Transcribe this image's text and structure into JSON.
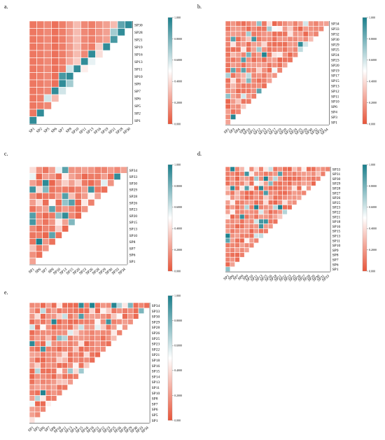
{
  "colors": {
    "low": "#e8553a",
    "mid": "#ffffff",
    "high": "#1a7f8c",
    "grid": "#ffffff",
    "axis": "#333333"
  },
  "colorbar_ticks": [
    "1.000",
    "0.8000",
    "0.6000",
    "0.4000",
    "0.2000",
    "0.000"
  ],
  "chart_data": [
    {
      "type": "heatmap",
      "panel_label": "a.",
      "title": "",
      "xlabel": "",
      "ylabel": "",
      "x_labels": [
        "SP1",
        "SP2",
        "SP5",
        "SP6",
        "SP7",
        "SP8",
        "SP10",
        "SP11",
        "SP13",
        "SP16",
        "SP19",
        "SP21",
        "SP28",
        "SP30"
      ],
      "y_labels": [
        "SP30",
        "SP28",
        "SP21",
        "SP19",
        "SP16",
        "SP13",
        "SP11",
        "SP10",
        "SP8",
        "SP7",
        "SP6",
        "SP5",
        "SP2",
        "SP1"
      ],
      "color_range": [
        0,
        1
      ],
      "note": "lower-triangular correlation matrix; values listed per y-label row (top to bottom), columns left to right",
      "values": [
        [
          0.1,
          0.12,
          0.15,
          0.08,
          0.12,
          0.2,
          0.3,
          0.15,
          0.12,
          0.18,
          0.22,
          0.3,
          0.85,
          0.95
        ],
        [
          0.1,
          0.12,
          0.15,
          0.08,
          0.12,
          0.2,
          0.3,
          0.15,
          0.12,
          0.18,
          0.22,
          0.7,
          0.95
        ],
        [
          0.1,
          0.12,
          0.15,
          0.08,
          0.12,
          0.2,
          0.3,
          0.15,
          0.12,
          0.18,
          0.22,
          0.9
        ],
        [
          0.1,
          0.12,
          0.15,
          0.08,
          0.12,
          0.2,
          0.3,
          0.15,
          0.12,
          0.35,
          0.95
        ],
        [
          0.1,
          0.12,
          0.15,
          0.08,
          0.12,
          0.2,
          0.3,
          0.15,
          0.95,
          0.4
        ],
        [
          0.1,
          0.12,
          0.15,
          0.08,
          0.12,
          0.25,
          0.35,
          0.95,
          0.55
        ],
        [
          0.1,
          0.12,
          0.15,
          0.08,
          0.12,
          0.6,
          0.95,
          0.45
        ],
        [
          0.1,
          0.12,
          0.15,
          0.08,
          0.9,
          0.95,
          0.5
        ],
        [
          0.1,
          0.12,
          0.15,
          0.08,
          0.95,
          0.7
        ],
        [
          0.1,
          0.12,
          0.15,
          0.95,
          0.6
        ],
        [
          0.1,
          0.12,
          0.6,
          0.3
        ],
        [
          0.1,
          0.12,
          0.15
        ],
        [
          0.1,
          0.95
        ],
        [
          0.95
        ]
      ]
    },
    {
      "type": "heatmap",
      "panel_label": "b.",
      "title": "",
      "xlabel": "",
      "ylabel": "",
      "x_labels": [
        "SP1",
        "SP3",
        "SP4",
        "SP6",
        "SP10",
        "SP11",
        "SP12",
        "SP13",
        "SP15",
        "SP17",
        "SP19",
        "SP20",
        "SP23",
        "SP24",
        "SP25",
        "SP29",
        "SP30",
        "SP32",
        "SP33",
        "SP34"
      ],
      "y_labels": [
        "SP34",
        "SP33",
        "SP32",
        "SP30",
        "SP29",
        "SP25",
        "SP24",
        "SP23",
        "SP20",
        "SP19",
        "SP17",
        "SP15",
        "SP13",
        "SP12",
        "SP11",
        "SP10",
        "SP6",
        "SP4",
        "SP3",
        "SP1"
      ],
      "color_range": [
        0,
        1
      ],
      "note": "lower-triangular correlation matrix; mostly low values with a few high cells"
    },
    {
      "type": "heatmap",
      "panel_label": "c.",
      "title": "",
      "xlabel": "",
      "ylabel": "",
      "x_labels": [
        "SP1",
        "SP6",
        "SP7",
        "SP8",
        "SP10",
        "SP13",
        "SP15",
        "SP20",
        "SP23",
        "SP26",
        "SP28",
        "SP29",
        "SP30",
        "SP33",
        "SP34"
      ],
      "y_labels": [
        "SP34",
        "SP33",
        "SP30",
        "SP29",
        "SP28",
        "SP26",
        "SP23",
        "SP20",
        "SP15",
        "SP13",
        "SP10",
        "SP8",
        "SP7",
        "SP6",
        "SP1"
      ],
      "color_range": [
        0,
        1
      ],
      "note": "lower-triangular correlation matrix"
    },
    {
      "type": "heatmap",
      "panel_label": "d.",
      "title": "",
      "xlabel": "",
      "ylabel": "",
      "x_labels": [
        "SP1",
        "SP6",
        "SP7",
        "SP8",
        "SP9",
        "SP10",
        "SP11",
        "SP13",
        "SP15",
        "SP16",
        "SP18",
        "SP21",
        "SP22",
        "SP23",
        "SP25",
        "SP26",
        "SP27",
        "SP28",
        "SP29",
        "SP30",
        "SP31",
        "SP33"
      ],
      "y_labels": [
        "SP33",
        "SP31",
        "SP30",
        "SP29",
        "SP28",
        "SP27",
        "SP26",
        "SP25",
        "SP23",
        "SP22",
        "SP21",
        "SP18",
        "SP16",
        "SP15",
        "SP13",
        "SP11",
        "SP10",
        "SP9",
        "SP8",
        "SP7",
        "SP6",
        "SP1"
      ],
      "color_range": [
        0,
        1
      ],
      "note": "lower-triangular correlation matrix"
    },
    {
      "type": "heatmap",
      "panel_label": "e.",
      "title": "",
      "xlabel": "",
      "ylabel": "",
      "x_labels": [
        "SP1",
        "SP5",
        "SP6",
        "SP7",
        "SP8",
        "SP10",
        "SP11",
        "SP13",
        "SP14",
        "SP15",
        "SP16",
        "SP18",
        "SP21",
        "SP22",
        "SP23",
        "SP25",
        "SP26",
        "SP28",
        "SP29",
        "SP30",
        "SP33",
        "SP34"
      ],
      "y_labels": [
        "SP34",
        "SP33",
        "SP30",
        "SP29",
        "SP28",
        "SP26",
        "SP25",
        "SP23",
        "SP22",
        "SP21",
        "SP18",
        "SP16",
        "SP15",
        "SP14",
        "SP13",
        "SP11",
        "SP10",
        "SP8",
        "SP7",
        "SP6",
        "SP5",
        "SP1"
      ],
      "color_range": [
        0,
        1
      ],
      "note": "lower-triangular correlation matrix"
    }
  ]
}
